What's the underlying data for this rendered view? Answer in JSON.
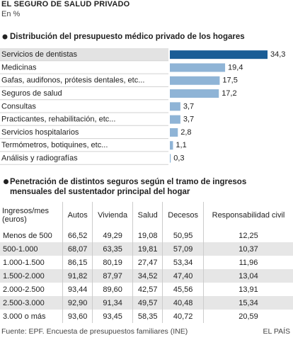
{
  "header": {
    "title": "EL SEGURO DE SALUD PRIVADO",
    "subtitle": "En %"
  },
  "chart_data": {
    "type": "bar",
    "orientation": "horizontal",
    "title": "Distribución del presupuesto médico privado de los hogares",
    "categories": [
      "Servicios de dentistas",
      "Medicinas",
      "Gafas, audifonos, prótesis dentales, etc...",
      "Seguros de salud",
      "Consultas",
      "Practicantes, rehabilitación, etc...",
      "Servicios hospitalarios",
      "Termómetros, botiquines, etc...",
      "Análisis y radiografías"
    ],
    "values": [
      34.3,
      19.4,
      17.5,
      17.2,
      3.7,
      3.7,
      2.8,
      1.1,
      0.3
    ],
    "value_labels": [
      "34,3",
      "19,4",
      "17,5",
      "17,2",
      "3,7",
      "3,7",
      "2,8",
      "1,1",
      "0,3"
    ],
    "colors": [
      "#1a5d96",
      "#8fb4d6",
      "#8fb4d6",
      "#8fb4d6",
      "#8fb4d6",
      "#8fb4d6",
      "#8fb4d6",
      "#8fb4d6",
      "#8fb4d6"
    ]
  },
  "table": {
    "title": "Penetración de distintos seguros según el tramo de  ingresos mensuales del sustentador principal del hogar",
    "columns": [
      "Ingresos/mes (euros)",
      "Autos",
      "Vivienda",
      "Salud",
      "Decesos",
      "Responsabilidad civil"
    ],
    "rows": [
      [
        "Menos de 500",
        "66,52",
        "49,29",
        "19,08",
        "50,95",
        "12,25"
      ],
      [
        "500-1.000",
        "68,07",
        "63,35",
        "19,81",
        "57,09",
        "10,37"
      ],
      [
        "1.000-1.500",
        "86,15",
        "80,19",
        "27,47",
        "53,34",
        "11,96"
      ],
      [
        "1.500-2.000",
        "91,82",
        "87,97",
        "34,52",
        "47,40",
        "13,04"
      ],
      [
        "2.000-2.500",
        "93,44",
        "89,60",
        "42,57",
        "45,56",
        "13,91"
      ],
      [
        "2.500-3.000",
        "92,90",
        "91,34",
        "49,57",
        "40,48",
        "15,34"
      ],
      [
        "3.000 o más",
        "93,60",
        "93,45",
        "58,35",
        "40,72",
        "20,59"
      ]
    ]
  },
  "footer": {
    "source": "Fuente: EPF. Encuesta de presupuestos familiares (INE)",
    "brand": "EL PAÍS"
  }
}
